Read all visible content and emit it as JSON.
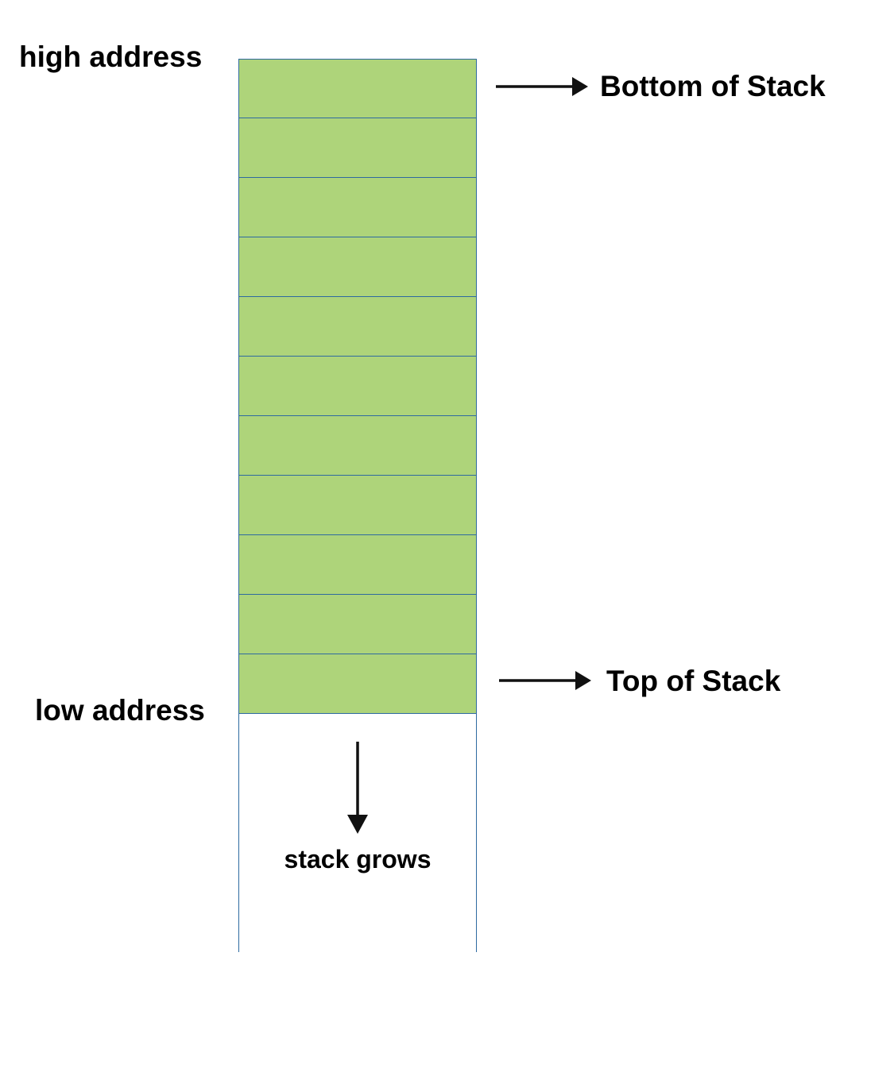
{
  "labels": {
    "high_address": "high address",
    "low_address": "low address",
    "bottom_of_stack": "Bottom of Stack",
    "top_of_stack": "Top of Stack",
    "stack_grows": "stack grows"
  },
  "stack": {
    "cell_count": 11,
    "fill_color": "#aed47a",
    "border_color": "#2e6aa0"
  },
  "arrow_color": "#111111"
}
